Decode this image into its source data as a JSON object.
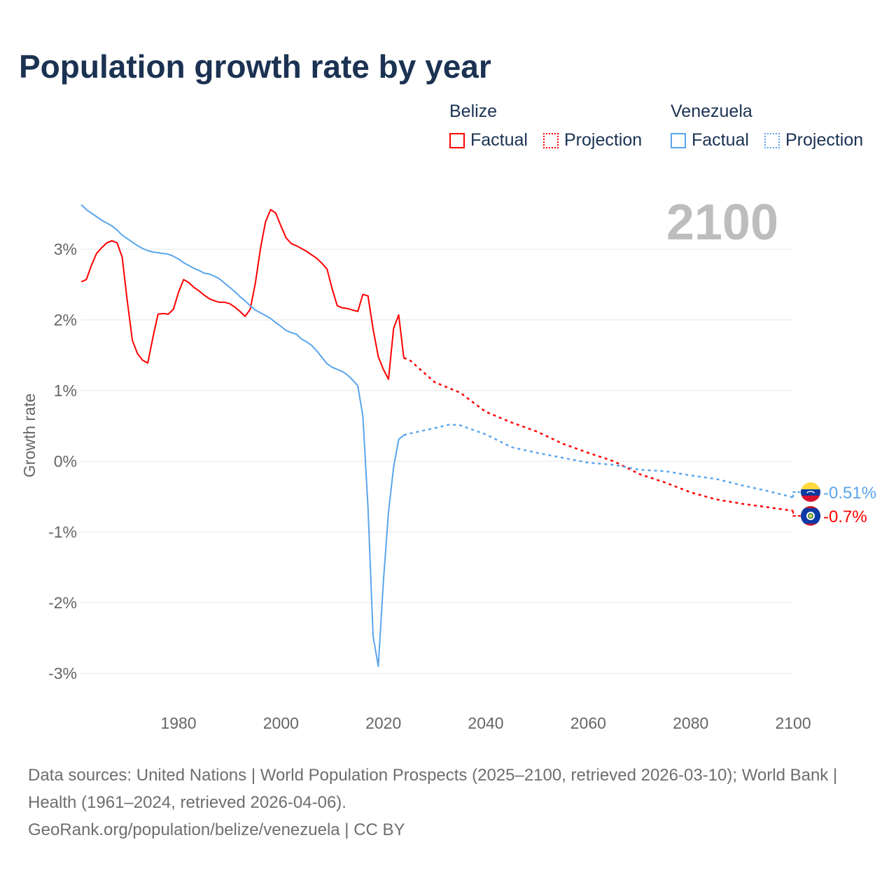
{
  "chart_data": {
    "type": "line",
    "title": "Population growth rate by year",
    "ylabel": "Growth rate",
    "xlabel": "",
    "xlim": [
      1961,
      2100
    ],
    "ylim": [
      -3.5,
      3.8
    ],
    "x_ticks": [
      "1980",
      "2000",
      "2020",
      "2040",
      "2060",
      "2080",
      "2100"
    ],
    "y_ticks": [
      "3%",
      "2%",
      "1%",
      "0%",
      "-1%",
      "-2%",
      "-3%"
    ],
    "y_tick_values": [
      3,
      2,
      1,
      0,
      -1,
      -2,
      -3
    ],
    "year_label": "2100",
    "grid": true,
    "legend_position": "top-right",
    "legend": {
      "groups": [
        {
          "country": "Belize",
          "factual": "Factual",
          "projection": "Projection"
        },
        {
          "country": "Venezuela",
          "factual": "Factual",
          "projection": "Projection"
        }
      ]
    },
    "series": [
      {
        "name": "Belize",
        "color": "#ff0000",
        "end_label": "-0.7%",
        "end_value": -0.7,
        "factual": {
          "x": [
            1961,
            1962,
            1963,
            1964,
            1965,
            1966,
            1967,
            1968,
            1969,
            1970,
            1971,
            1972,
            1973,
            1974,
            1975,
            1976,
            1977,
            1978,
            1979,
            1980,
            1981,
            1982,
            1983,
            1984,
            1985,
            1986,
            1987,
            1988,
            1989,
            1990,
            1991,
            1992,
            1993,
            1994,
            1995,
            1996,
            1997,
            1998,
            1999,
            2000,
            2001,
            2002,
            2003,
            2004,
            2005,
            2006,
            2007,
            2008,
            2009,
            2010,
            2011,
            2012,
            2013,
            2014,
            2015,
            2016,
            2017,
            2018,
            2019,
            2020,
            2021,
            2022,
            2023,
            2024
          ],
          "y": [
            2.54,
            2.57,
            2.77,
            2.94,
            3.02,
            3.09,
            3.12,
            3.09,
            2.89,
            2.27,
            1.71,
            1.52,
            1.43,
            1.39,
            1.75,
            2.08,
            2.09,
            2.08,
            2.15,
            2.39,
            2.57,
            2.53,
            2.46,
            2.41,
            2.35,
            2.3,
            2.27,
            2.25,
            2.25,
            2.23,
            2.18,
            2.12,
            2.05,
            2.15,
            2.52,
            3.01,
            3.39,
            3.56,
            3.51,
            3.33,
            3.16,
            3.08,
            3.05,
            3.01,
            2.97,
            2.92,
            2.87,
            2.8,
            2.72,
            2.44,
            2.2,
            2.17,
            2.16,
            2.14,
            2.12,
            2.36,
            2.34,
            1.87,
            1.48,
            1.3,
            1.16,
            1.88,
            2.07,
            1.46
          ]
        },
        "projection": {
          "x": [
            2024,
            2025,
            2030,
            2035,
            2040,
            2045,
            2050,
            2055,
            2060,
            2065,
            2070,
            2075,
            2080,
            2085,
            2090,
            2095,
            2100
          ],
          "y": [
            1.46,
            1.44,
            1.12,
            0.97,
            0.7,
            0.55,
            0.42,
            0.25,
            0.12,
            0.0,
            -0.18,
            -0.3,
            -0.44,
            -0.54,
            -0.6,
            -0.65,
            -0.7
          ]
        }
      },
      {
        "name": "Venezuela",
        "color": "#5aa5ec",
        "end_label": "-0.51%",
        "end_value": -0.51,
        "factual": {
          "x": [
            1961,
            1962,
            1963,
            1964,
            1965,
            1966,
            1967,
            1968,
            1969,
            1970,
            1971,
            1972,
            1973,
            1974,
            1975,
            1976,
            1977,
            1978,
            1979,
            1980,
            1981,
            1982,
            1983,
            1984,
            1985,
            1986,
            1987,
            1988,
            1989,
            1990,
            1991,
            1992,
            1993,
            1994,
            1995,
            1996,
            1997,
            1998,
            1999,
            2000,
            2001,
            2002,
            2003,
            2004,
            2005,
            2006,
            2007,
            2008,
            2009,
            2010,
            2011,
            2012,
            2013,
            2014,
            2015,
            2016,
            2017,
            2018,
            2019,
            2020,
            2021,
            2022,
            2023,
            2024
          ],
          "y": [
            3.63,
            3.56,
            3.51,
            3.46,
            3.41,
            3.37,
            3.33,
            3.27,
            3.2,
            3.15,
            3.1,
            3.05,
            3.01,
            2.98,
            2.96,
            2.95,
            2.94,
            2.93,
            2.9,
            2.86,
            2.81,
            2.77,
            2.73,
            2.7,
            2.66,
            2.65,
            2.62,
            2.58,
            2.52,
            2.46,
            2.4,
            2.33,
            2.27,
            2.2,
            2.14,
            2.1,
            2.06,
            2.02,
            1.96,
            1.91,
            1.85,
            1.82,
            1.8,
            1.73,
            1.69,
            1.64,
            1.56,
            1.47,
            1.38,
            1.33,
            1.3,
            1.27,
            1.22,
            1.15,
            1.07,
            0.64,
            -0.65,
            -2.47,
            -2.9,
            -1.7,
            -0.72,
            -0.08,
            0.31,
            0.37
          ]
        },
        "projection": {
          "x": [
            2024,
            2025,
            2030,
            2033,
            2035,
            2040,
            2045,
            2050,
            2055,
            2060,
            2065,
            2070,
            2075,
            2080,
            2085,
            2090,
            2095,
            2100
          ],
          "y": [
            0.37,
            0.39,
            0.47,
            0.52,
            0.51,
            0.38,
            0.2,
            0.12,
            0.05,
            -0.02,
            -0.05,
            -0.12,
            -0.14,
            -0.2,
            -0.25,
            -0.34,
            -0.42,
            -0.51
          ]
        }
      }
    ]
  },
  "footer": {
    "sources": "Data sources: United Nations | World Population Prospects (2025–2100, retrieved 2026-03-10); World Bank | Health (1961–2024, retrieved 2026-04-06).",
    "link": "GeoRank.org/population/belize/venezuela | CC BY"
  }
}
